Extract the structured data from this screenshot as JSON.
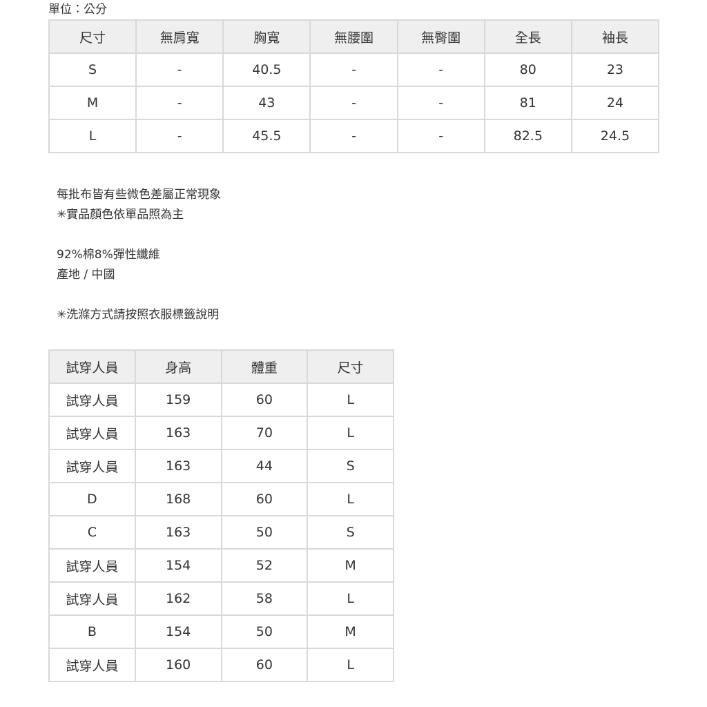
{
  "unit_label": "單位：公分",
  "size_table": {
    "header": [
      "尺寸",
      "無肩寬",
      "胸寬",
      "無腰圍",
      "無臀圍",
      "全長",
      "袖長"
    ],
    "rows": [
      [
        "S",
        "-",
        "40.5",
        "-",
        "-",
        "80",
        "23"
      ],
      [
        "M",
        "-",
        "43",
        "-",
        "-",
        "81",
        "24"
      ],
      [
        "L",
        "-",
        "45.5",
        "-",
        "-",
        "82.5",
        "24.5"
      ]
    ]
  },
  "notes": {
    "groups": [
      [
        "每批布皆有些微色差屬正常現象",
        "✳實品顏色依單品照為主"
      ],
      [
        "92%棉8%彈性纖維",
        "產地 / 中國"
      ],
      [
        "✳洗滌方式請按照衣服標籤說明"
      ]
    ]
  },
  "model_table": {
    "header": [
      "試穿人員",
      "身高",
      "體重",
      "尺寸"
    ],
    "rows": [
      [
        "試穿人員",
        "159",
        "60",
        "L"
      ],
      [
        "試穿人員",
        "163",
        "70",
        "L"
      ],
      [
        "試穿人員",
        "163",
        "44",
        "S"
      ],
      [
        "D",
        "168",
        "60",
        "L"
      ],
      [
        "C",
        "163",
        "50",
        "S"
      ],
      [
        "試穿人員",
        "154",
        "52",
        "M"
      ],
      [
        "試穿人員",
        "162",
        "58",
        "L"
      ],
      [
        "B",
        "154",
        "50",
        "M"
      ],
      [
        "試穿人員",
        "160",
        "60",
        "L"
      ]
    ]
  }
}
